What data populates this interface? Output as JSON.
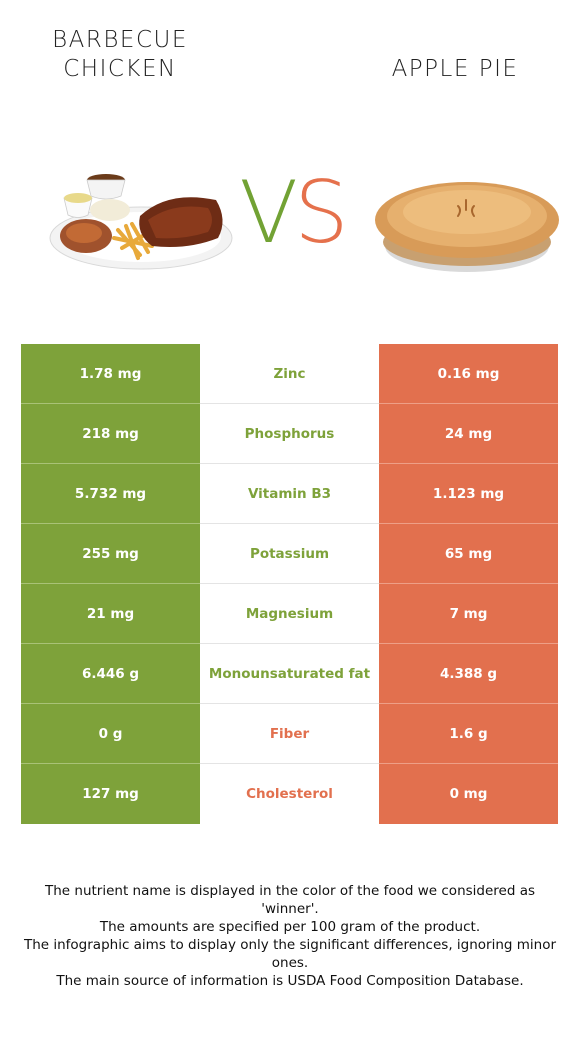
{
  "foods": {
    "left": {
      "title_line1": "BARBECUE",
      "title_line2": "CHICKEN",
      "color": "#7ea23a"
    },
    "right": {
      "title": "APPLE PIE",
      "color": "#e2704e"
    }
  },
  "vs": {
    "v": "V",
    "s": "S"
  },
  "rows": [
    {
      "left": "1.78 mg",
      "nutrient": "Zinc",
      "right": "0.16 mg",
      "winner": "left"
    },
    {
      "left": "218 mg",
      "nutrient": "Phosphorus",
      "right": "24 mg",
      "winner": "left"
    },
    {
      "left": "5.732 mg",
      "nutrient": "Vitamin B3",
      "right": "1.123 mg",
      "winner": "left"
    },
    {
      "left": "255 mg",
      "nutrient": "Potassium",
      "right": "65 mg",
      "winner": "left"
    },
    {
      "left": "21 mg",
      "nutrient": "Magnesium",
      "right": "7 mg",
      "winner": "left"
    },
    {
      "left": "6.446 g",
      "nutrient": "Monounsaturated fat",
      "right": "4.388 g",
      "winner": "left"
    },
    {
      "left": "0 g",
      "nutrient": "Fiber",
      "right": "1.6 g",
      "winner": "right"
    },
    {
      "left": "127 mg",
      "nutrient": "Cholesterol",
      "right": "0 mg",
      "winner": "right"
    }
  ],
  "footnote": {
    "line1": "The nutrient name is displayed in the color of the food we considered as 'winner'.",
    "line2": "The amounts are specified per 100 gram of the product.",
    "line3": "The infographic aims to display only the significant differences, ignoring minor ones.",
    "line4": "The main source of information is USDA Food Composition Database."
  }
}
